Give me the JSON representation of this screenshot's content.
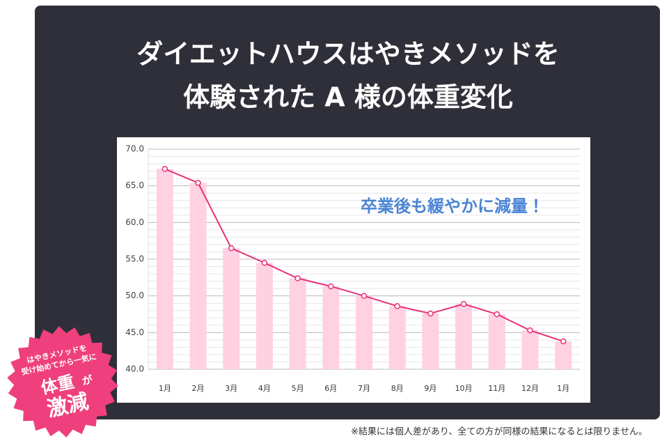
{
  "title_lines": [
    "ダイエットハウスはやきメソッドを",
    "体験された A 様の体重変化"
  ],
  "chart_data": {
    "type": "bar_line",
    "categories": [
      "1月",
      "2月",
      "3月",
      "4月",
      "5月",
      "6月",
      "7月",
      "8月",
      "9月",
      "10月",
      "11月",
      "12月",
      "1月"
    ],
    "values": [
      67.3,
      65.4,
      56.5,
      54.5,
      52.4,
      51.3,
      50.0,
      48.6,
      47.6,
      48.9,
      47.5,
      45.3,
      43.8
    ],
    "bar_color": "#ffd1e1",
    "line_color": "#e8307a",
    "ylim": [
      40,
      70
    ],
    "yticks": [
      {
        "value": 40,
        "label": "40.0"
      },
      {
        "value": 45,
        "label": "45.0"
      },
      {
        "value": 50,
        "label": "50.0"
      },
      {
        "value": 55,
        "label": "55.0"
      },
      {
        "value": 60,
        "label": "60.0"
      },
      {
        "value": 65,
        "label": "65.0"
      },
      {
        "value": 70,
        "label": "70.0"
      }
    ],
    "grid": true,
    "minor_grid": 1,
    "annotation": "卒業後も緩やかに減量！"
  },
  "badge": {
    "lines": [
      "はやきメソッドを",
      "受け始めてから一気に"
    ],
    "big": "体重",
    "small": "が",
    "big2": "激減"
  },
  "footnote": "※結果には個人差があり、全ての方が同様の結果になるとは限りません。"
}
